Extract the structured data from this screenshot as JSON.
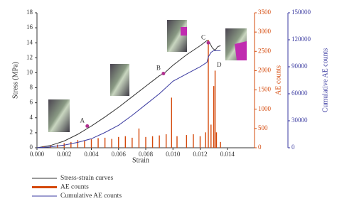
{
  "chart_data": {
    "type": "combo",
    "x_label": "Strain",
    "y_label": "Stress (MPa)",
    "y2_label": "AE counts",
    "y3_label": "Cumulative AE counts",
    "xlim": [
      0,
      0.016
    ],
    "xticks": [
      {
        "value": 0,
        "label": "0.000"
      },
      {
        "value": 0.002,
        "label": "0.002"
      },
      {
        "value": 0.004,
        "label": "0.004"
      },
      {
        "value": 0.006,
        "label": "0.006"
      },
      {
        "value": 0.008,
        "label": "0.008"
      },
      {
        "value": 0.01,
        "label": "0.010"
      },
      {
        "value": 0.012,
        "label": "0.012"
      },
      {
        "value": 0.014,
        "label": "0.014"
      }
    ],
    "ylim": [
      0,
      18
    ],
    "yticks": [
      0,
      2,
      4,
      6,
      8,
      10,
      12,
      14,
      16,
      18
    ],
    "y2lim": [
      0,
      3500
    ],
    "y2ticks": [
      0,
      500,
      1000,
      1500,
      2000,
      2500,
      3000,
      3500
    ],
    "y3lim": [
      0,
      150000
    ],
    "y3ticks": [
      0,
      30000,
      60000,
      90000,
      120000,
      150000
    ],
    "series": [
      {
        "name": "Stress-strain curves",
        "color": "#333333",
        "kind": "line",
        "axis": "y",
        "x": [
          0,
          0.001,
          0.002,
          0.003,
          0.004,
          0.005,
          0.006,
          0.007,
          0.008,
          0.009,
          0.0094,
          0.01,
          0.011,
          0.012,
          0.0125,
          0.0127,
          0.0129,
          0.0131,
          0.0133,
          0.0135
        ],
        "values": [
          0,
          0.3,
          0.9,
          1.8,
          2.9,
          4.1,
          5.4,
          6.8,
          8.2,
          9.6,
          10.0,
          11.0,
          12.4,
          13.6,
          14.3,
          14.0,
          13.3,
          13.0,
          13.5,
          13.6
        ]
      },
      {
        "name": "AE counts",
        "color": "#d4480a",
        "kind": "bar",
        "axis": "y2",
        "x": [
          0.0005,
          0.001,
          0.0015,
          0.002,
          0.0025,
          0.003,
          0.0035,
          0.004,
          0.0045,
          0.005,
          0.0055,
          0.006,
          0.0065,
          0.007,
          0.0075,
          0.008,
          0.0085,
          0.009,
          0.0095,
          0.0099,
          0.0103,
          0.011,
          0.0115,
          0.012,
          0.0124,
          0.0126,
          0.0128,
          0.013,
          0.0131,
          0.0132,
          0.0135
        ],
        "values": [
          40,
          60,
          80,
          120,
          150,
          200,
          180,
          220,
          250,
          260,
          230,
          280,
          300,
          260,
          500,
          280,
          300,
          320,
          350,
          1300,
          300,
          330,
          350,
          300,
          400,
          2800,
          600,
          1600,
          2000,
          400,
          150
        ]
      },
      {
        "name": "Cumulative AE counts",
        "color": "#3a3aa0",
        "kind": "line",
        "axis": "y3",
        "x": [
          0,
          0.001,
          0.002,
          0.003,
          0.004,
          0.005,
          0.006,
          0.007,
          0.008,
          0.009,
          0.01,
          0.011,
          0.012,
          0.0125,
          0.0126,
          0.0128,
          0.013,
          0.0133,
          0.0135
        ],
        "values": [
          0,
          1000,
          3000,
          6000,
          10000,
          17000,
          25000,
          36000,
          48000,
          60000,
          74000,
          82000,
          90000,
          95000,
          101000,
          106000,
          108000,
          108000,
          108000
        ]
      }
    ],
    "points": [
      {
        "label": "A",
        "x": 0.0037,
        "y": 2.9
      },
      {
        "label": "B",
        "x": 0.0093,
        "y": 9.9
      },
      {
        "label": "C",
        "x": 0.0126,
        "y": 14.0
      }
    ],
    "annotations": [
      {
        "label": "D",
        "x": 0.0134,
        "y": 11.0
      }
    ]
  }
}
